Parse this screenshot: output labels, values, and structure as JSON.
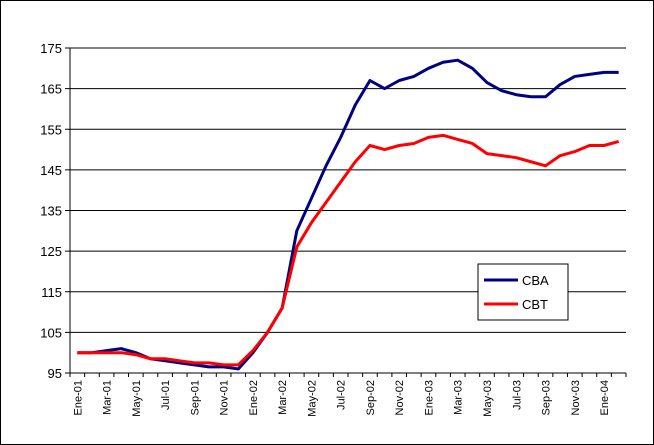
{
  "chart_data": {
    "type": "line",
    "categories": [
      "Ene-01",
      null,
      "Mar-01",
      null,
      "May-01",
      null,
      "Jul-01",
      null,
      "Sep-01",
      null,
      "Nov-01",
      null,
      "Ene-02",
      null,
      "Mar-02",
      null,
      "May-02",
      null,
      "Jul-02",
      null,
      "Sep-02",
      null,
      "Nov-02",
      null,
      "Ene-03",
      null,
      "Mar-03",
      null,
      "May-03",
      null,
      "Jul-03",
      null,
      "Sep-03",
      null,
      "Nov-03",
      null,
      "Ene-04",
      null
    ],
    "series": [
      {
        "name": "CBA",
        "color": "#000080",
        "values": [
          100,
          100,
          100.5,
          101,
          100,
          98.5,
          98,
          97.5,
          97,
          96.5,
          96.5,
          96,
          100,
          105,
          111,
          130,
          138,
          146,
          153,
          161,
          167,
          165,
          167,
          168,
          170,
          171.5,
          172,
          170,
          166.5,
          164.5,
          163.5,
          163,
          163,
          166,
          168,
          168.5,
          169,
          169
        ]
      },
      {
        "name": "CBT",
        "color": "#ff0000",
        "values": [
          100,
          100,
          100,
          100,
          99.5,
          98.5,
          98.5,
          98,
          97.5,
          97.5,
          97,
          97,
          100.5,
          105,
          111,
          126,
          132,
          137,
          142,
          147,
          151,
          150,
          151,
          151.5,
          153,
          153.5,
          152.5,
          151.5,
          149,
          148.5,
          148,
          147,
          146,
          148.5,
          149.5,
          151,
          151,
          152
        ]
      }
    ],
    "ylim": [
      95,
      175
    ],
    "yticks": [
      95,
      105,
      115,
      125,
      135,
      145,
      155,
      165,
      175
    ],
    "grid": true
  }
}
